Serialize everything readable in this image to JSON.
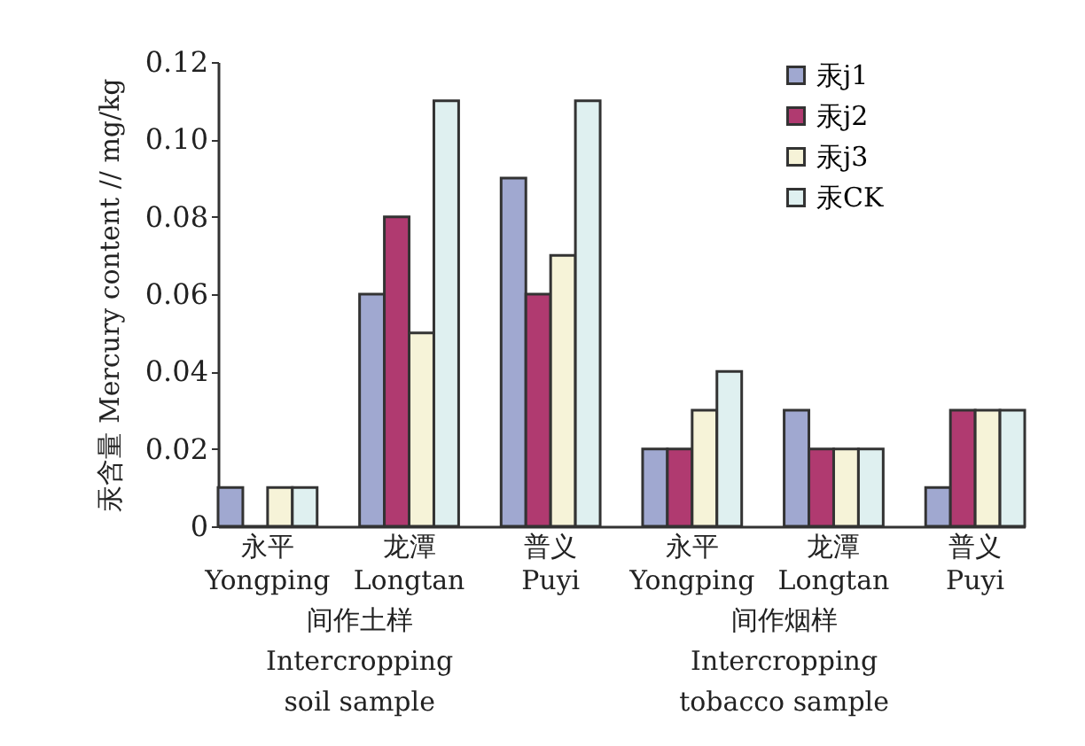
{
  "chart_data": {
    "type": "bar",
    "ylabel": "汞含量 Mercury content // mg/kg",
    "categories": [
      "永平\nYongping",
      "龙潭\nLongtan",
      "普义\nPuyi",
      "永平\nYongping",
      "龙潭\nLongtan",
      "普义\nPuyi"
    ],
    "series": [
      {
        "name": "汞j1",
        "color": "#a0a8d0",
        "values": [
          0.01,
          0.06,
          0.09,
          0.02,
          0.03,
          0.01
        ]
      },
      {
        "name": "汞j2",
        "color": "#b03a70",
        "values": [
          0,
          0.08,
          0.06,
          0.02,
          0.02,
          0.03
        ]
      },
      {
        "name": "汞j3",
        "color": "#f6f3d8",
        "values": [
          0.01,
          0.05,
          0.07,
          0.03,
          0.02,
          0.03
        ]
      },
      {
        "name": "汞CK",
        "color": "#dff0f0",
        "values": [
          0.01,
          0.11,
          0.11,
          0.04,
          0.02,
          0.03
        ]
      }
    ],
    "ylim": [
      0,
      0.12
    ],
    "yticks": [
      0,
      0.02,
      0.04,
      0.06,
      0.08,
      {
        "value": 0.1,
        "label": "0.10"
      },
      0.12
    ],
    "annotations": [
      "间作土样\nIntercropping\nsoil sample",
      "间作烟样\nIntercropping\ntobacco sample"
    ],
    "legend": "top right",
    "grid": false
  }
}
